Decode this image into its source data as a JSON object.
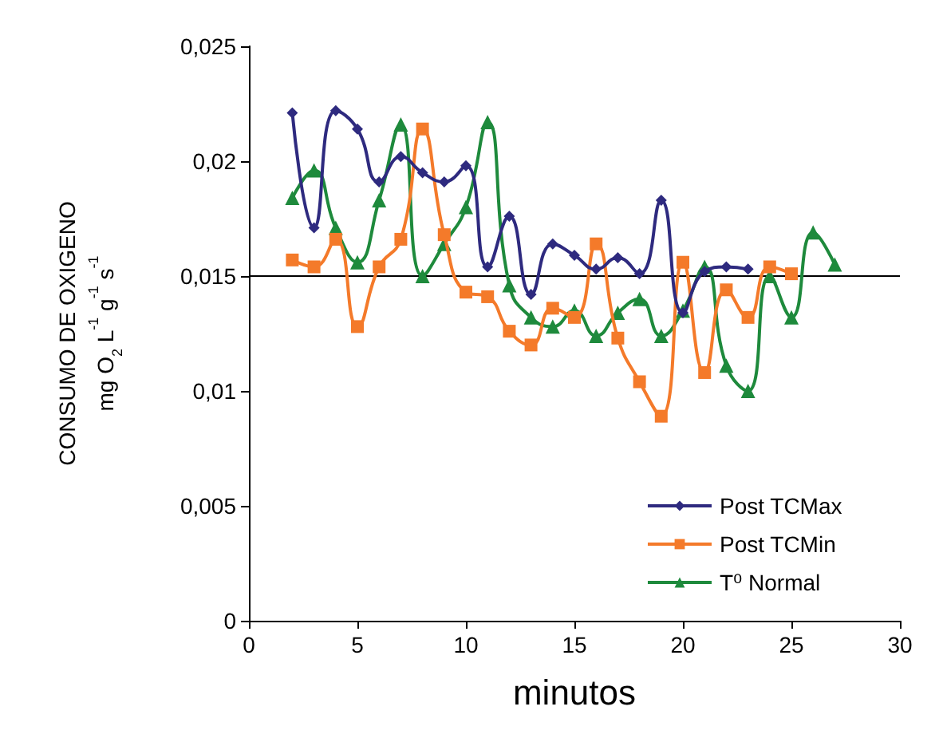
{
  "chart_data": {
    "type": "line",
    "xlabel": "minutos",
    "ylabel": "CONSUMO DE OXIGENO\nmg O$_{2}$ L$^{-1}$ g$^{-1}$ s$^{-1}$",
    "xlim": [
      0,
      30
    ],
    "xticks": [
      0,
      5,
      10,
      15,
      20,
      25,
      30
    ],
    "ylim": [
      0,
      0.025
    ],
    "yticks": [
      {
        "value": 0,
        "label": "0"
      },
      {
        "value": 0.005,
        "label": "0,005"
      },
      {
        "value": 0.01,
        "label": "0,01"
      },
      {
        "value": 0.015,
        "label": "0,015"
      },
      {
        "value": 0.02,
        "label": "0,02"
      },
      {
        "value": 0.025,
        "label": "0,025"
      }
    ],
    "grid": false,
    "legend": "bottom right",
    "line_style": "solid",
    "ref_lines": [
      {
        "axis": "y",
        "value": 0.015,
        "color": "#000000"
      }
    ],
    "series": [
      {
        "name": "Post TCMax",
        "color": "#2e2a7f",
        "marker": "diamond",
        "x": [
          2,
          3,
          4,
          5,
          6,
          7,
          8,
          9,
          10,
          11,
          12,
          13,
          14,
          15,
          16,
          17,
          18,
          19,
          20,
          21,
          22,
          23
        ],
        "values": [
          0.0221,
          0.0171,
          0.0222,
          0.0214,
          0.0191,
          0.0202,
          0.0195,
          0.0191,
          0.0198,
          0.0154,
          0.0176,
          0.0142,
          0.0164,
          0.0159,
          0.0153,
          0.0158,
          0.0151,
          0.0183,
          0.0134,
          0.0152,
          0.0154,
          0.0153
        ]
      },
      {
        "name": "Post TCMin",
        "color": "#f47a2a",
        "marker": "square",
        "x": [
          2,
          3,
          4,
          5,
          6,
          7,
          8,
          9,
          10,
          11,
          12,
          13,
          14,
          15,
          16,
          17,
          18,
          19,
          20,
          21,
          22,
          23,
          24,
          25
        ],
        "values": [
          0.0157,
          0.0154,
          0.0166,
          0.0128,
          0.0154,
          0.0166,
          0.0214,
          0.0168,
          0.0143,
          0.0141,
          0.0126,
          0.012,
          0.0136,
          0.0132,
          0.0164,
          0.0123,
          0.0104,
          0.0089,
          0.0156,
          0.0108,
          0.0144,
          0.0132,
          0.0154,
          0.0151
        ]
      },
      {
        "name": "T⁰ Normal",
        "color": "#1e8a3c",
        "marker": "triangle",
        "x": [
          2,
          3,
          4,
          5,
          6,
          7,
          8,
          9,
          10,
          11,
          12,
          13,
          14,
          15,
          16,
          17,
          18,
          19,
          20,
          21,
          22,
          23,
          24,
          25,
          26,
          27
        ],
        "values": [
          0.0184,
          0.0196,
          0.0171,
          0.0156,
          0.0183,
          0.0216,
          0.015,
          0.0164,
          0.018,
          0.0217,
          0.0146,
          0.0132,
          0.0128,
          0.0135,
          0.0124,
          0.0134,
          0.014,
          0.0124,
          0.0135,
          0.0154,
          0.0111,
          0.01,
          0.015,
          0.0132,
          0.0169,
          0.0155
        ]
      }
    ]
  }
}
